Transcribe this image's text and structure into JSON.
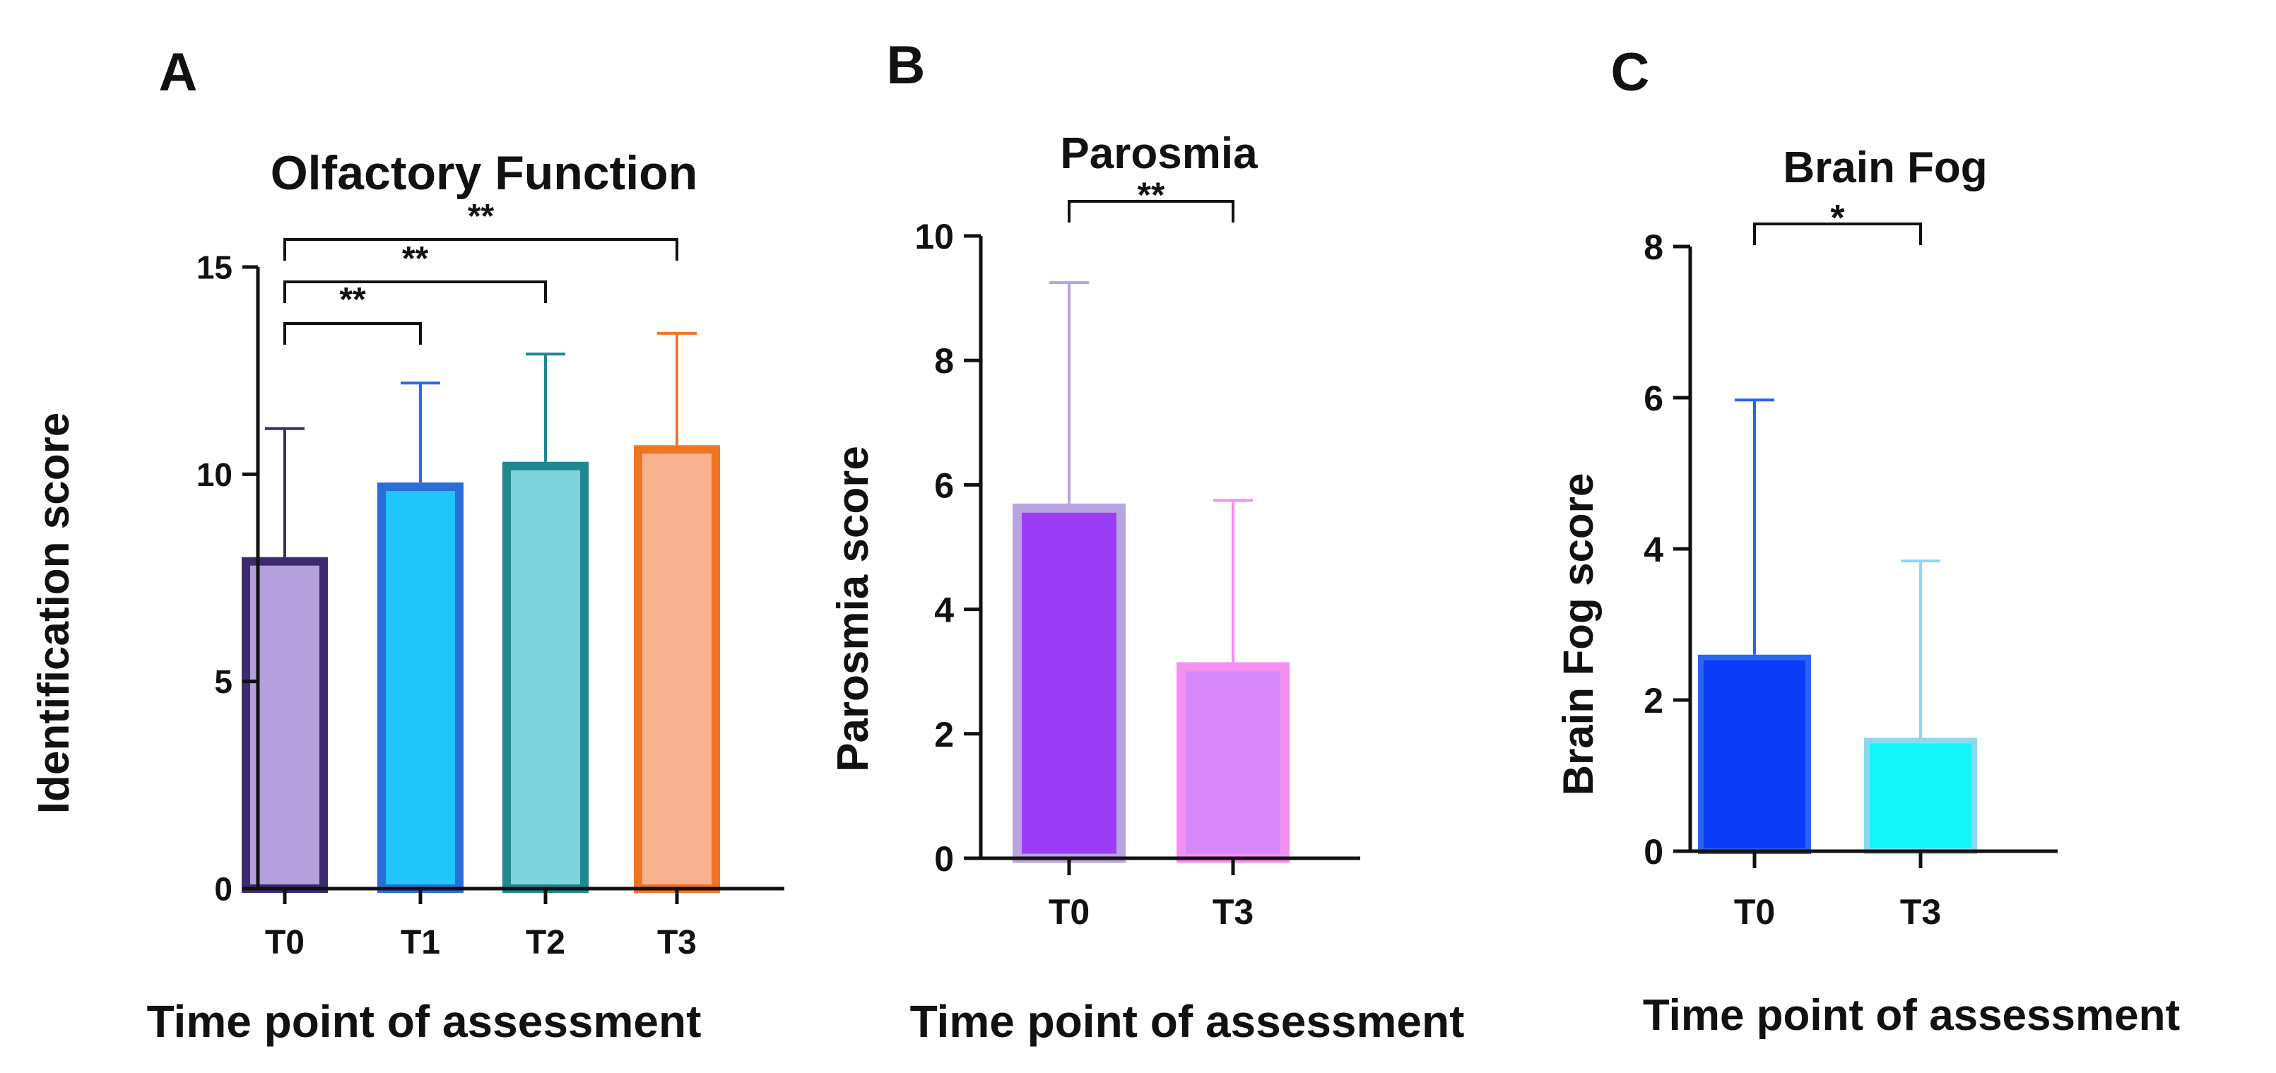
{
  "figure": {
    "panels": [
      "A",
      "B",
      "C"
    ]
  },
  "chart_data": [
    {
      "type": "bar",
      "panel_label": "A",
      "title": "Olfactory Function",
      "xlabel": "Time point of assessment",
      "ylabel": "Identification score",
      "ylim": [
        0,
        15
      ],
      "yticks": [
        "0",
        "5",
        "10",
        "15"
      ],
      "categories": [
        "T0",
        "T1",
        "T2",
        "T3"
      ],
      "values": [
        8.0,
        9.8,
        10.3,
        10.7
      ],
      "error_upper": [
        11.1,
        12.2,
        12.9,
        13.4
      ],
      "fill_colors": [
        "#b3a0dc",
        "#1ec6fa",
        "#7fd3dc",
        "#f8b292"
      ],
      "edge_colors": [
        "#3b2a6e",
        "#2a6fd8",
        "#1f878f",
        "#f07522"
      ],
      "significance": [
        {
          "from": "T0",
          "to": "T1",
          "label": "**"
        },
        {
          "from": "T0",
          "to": "T2",
          "label": "**"
        },
        {
          "from": "T0",
          "to": "T3",
          "label": "**"
        }
      ]
    },
    {
      "type": "bar",
      "panel_label": "B",
      "title": "Parosmia",
      "xlabel": "Time point of assessment",
      "ylabel": "Parosmia score",
      "ylim": [
        0,
        10
      ],
      "yticks": [
        "0",
        "2",
        "4",
        "6",
        "8",
        "10"
      ],
      "categories": [
        "T0",
        "T3"
      ],
      "values": [
        5.7,
        3.15
      ],
      "error_upper": [
        9.25,
        5.75
      ],
      "fill_colors": [
        "#9b3cf6",
        "#d888f8"
      ],
      "edge_colors": [
        "#b8a4de",
        "#f490f2"
      ],
      "significance": [
        {
          "from": "T0",
          "to": "T3",
          "label": "**"
        }
      ]
    },
    {
      "type": "bar",
      "panel_label": "C",
      "title": "Brain Fog",
      "xlabel": "Time point of assessment",
      "ylabel": "Brain Fog score",
      "ylim": [
        0,
        8
      ],
      "yticks": [
        "0",
        "2",
        "4",
        "6",
        "8"
      ],
      "categories": [
        "T0",
        "T3"
      ],
      "values": [
        2.6,
        1.5
      ],
      "error_upper": [
        5.97,
        3.84
      ],
      "fill_colors": [
        "#0b3cf7",
        "#13f6f8"
      ],
      "edge_colors": [
        "#2a66f3",
        "#8cd8f2"
      ],
      "significance": [
        {
          "from": "T0",
          "to": "T3",
          "label": "*"
        }
      ]
    }
  ]
}
